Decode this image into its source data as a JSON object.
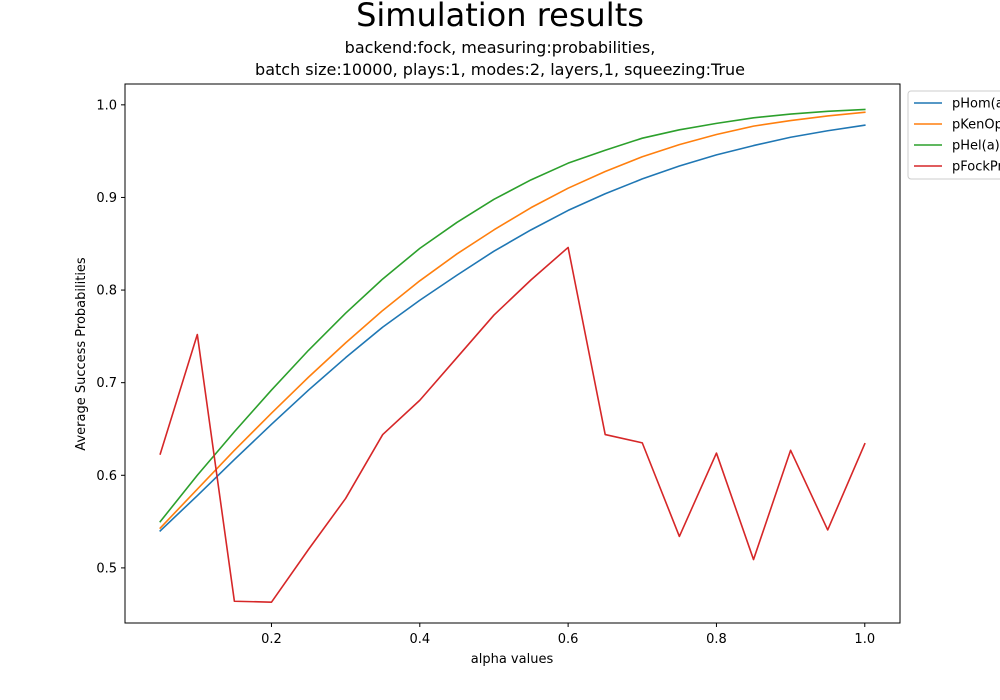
{
  "chart_data": {
    "type": "line",
    "title": "Simulation results",
    "subtitle_line1": "backend:fock, measuring:probabilities,",
    "subtitle_line2": "batch size:10000, plays:1, modes:2, layers,1, squeezing:True",
    "xlabel": "alpha values",
    "ylabel": "Average Success Probabilities",
    "xlim": [
      0.0025,
      1.0475
    ],
    "ylim": [
      0.4405,
      1.0225
    ],
    "xticks": [
      0.2,
      0.4,
      0.6,
      0.8,
      1.0
    ],
    "xtick_labels": [
      "0.2",
      "0.4",
      "0.6",
      "0.8",
      "1.0"
    ],
    "yticks": [
      0.5,
      0.6,
      0.7,
      0.8,
      0.9,
      1.0
    ],
    "ytick_labels": [
      "0.5",
      "0.6",
      "0.7",
      "0.8",
      "0.9",
      "1.0"
    ],
    "legend_position": "outside-top-right",
    "x": [
      0.05,
      0.1,
      0.15,
      0.2,
      0.25,
      0.3,
      0.35,
      0.4,
      0.45,
      0.5,
      0.55,
      0.6,
      0.65,
      0.7,
      0.75,
      0.8,
      0.85,
      0.9,
      0.95,
      1.0
    ],
    "series": [
      {
        "name": "pHom(a)",
        "color": "#1f77b4",
        "values": [
          0.54,
          0.578,
          0.617,
          0.655,
          0.692,
          0.727,
          0.76,
          0.789,
          0.816,
          0.842,
          0.865,
          0.886,
          0.904,
          0.92,
          0.934,
          0.946,
          0.956,
          0.965,
          0.972,
          0.978
        ]
      },
      {
        "name": "pKenOp(a)",
        "color": "#ff7f0e",
        "values": [
          0.543,
          0.585,
          0.627,
          0.667,
          0.706,
          0.743,
          0.778,
          0.81,
          0.839,
          0.865,
          0.889,
          0.91,
          0.928,
          0.944,
          0.957,
          0.968,
          0.977,
          0.983,
          0.988,
          0.992
        ]
      },
      {
        "name": "pHel(a)",
        "color": "#2ca02c",
        "values": [
          0.55,
          0.6,
          0.647,
          0.692,
          0.735,
          0.775,
          0.812,
          0.845,
          0.873,
          0.898,
          0.919,
          0.937,
          0.951,
          0.964,
          0.973,
          0.98,
          0.986,
          0.99,
          0.993,
          0.995
        ]
      },
      {
        "name": "pFockProb(a)",
        "color": "#d62728",
        "values": [
          0.623,
          0.752,
          0.464,
          0.463,
          0.52,
          0.575,
          0.644,
          0.681,
          0.727,
          0.773,
          0.811,
          0.846,
          0.644,
          0.635,
          0.534,
          0.624,
          0.509,
          0.627,
          0.541,
          0.634
        ]
      }
    ]
  }
}
